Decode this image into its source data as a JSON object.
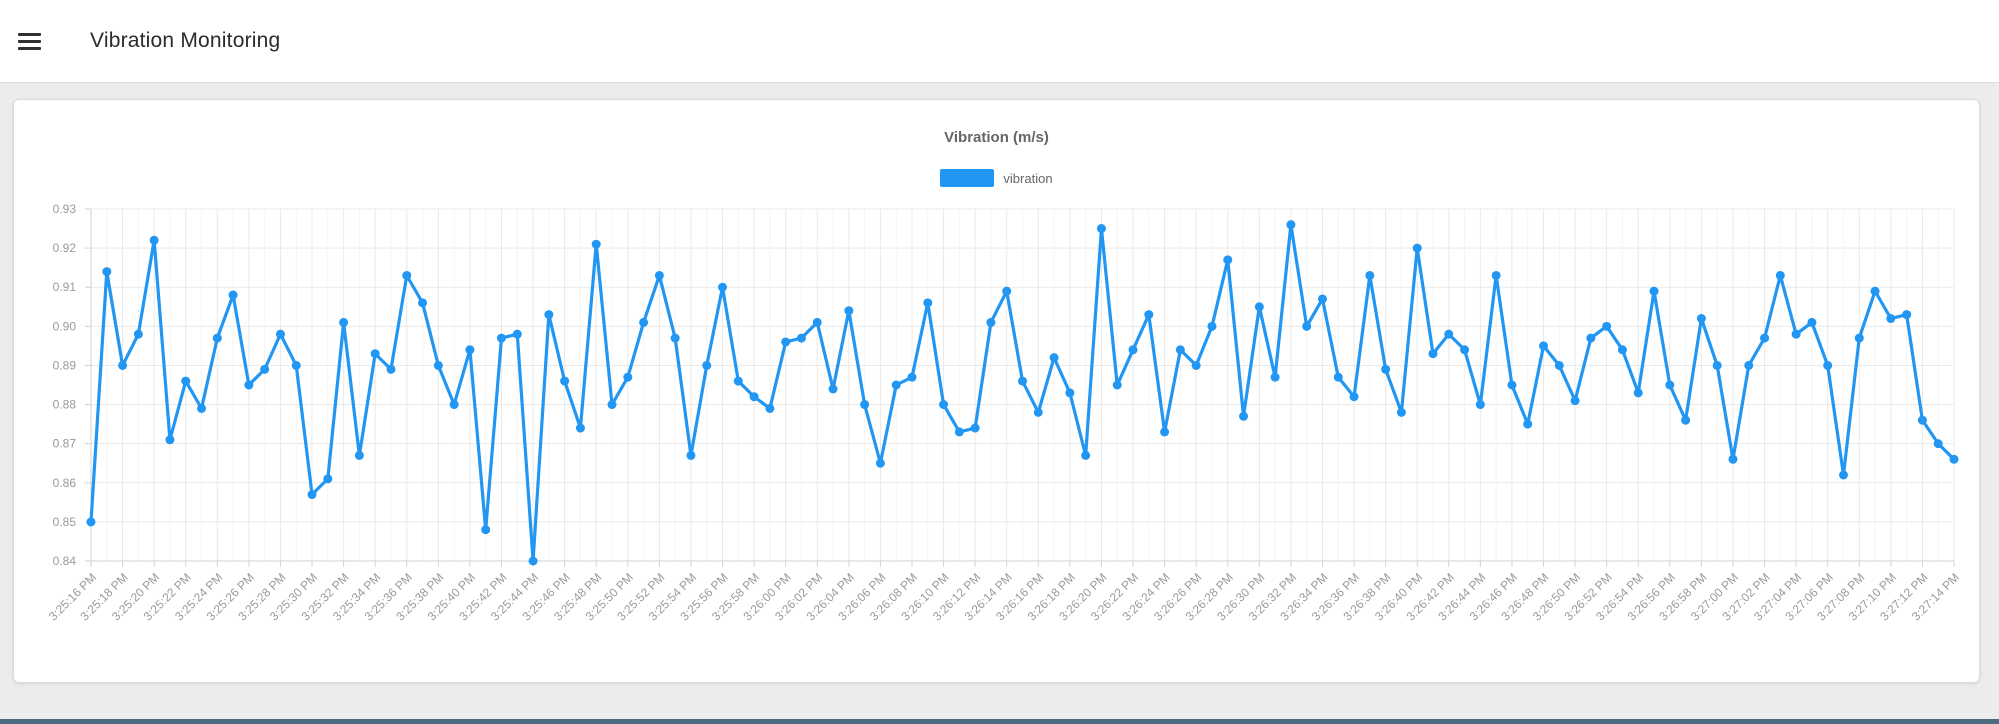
{
  "header": {
    "title": "Vibration Monitoring",
    "menu_icon": "hamburger-icon"
  },
  "chart_data": {
    "type": "line",
    "title": "Vibration (m/s)",
    "legend_position": "top",
    "grid": true,
    "ylim": [
      0.84,
      0.93
    ],
    "y_tick_step": 0.01,
    "y_tick_labels": [
      "0.93",
      "0.92",
      "0.91",
      "0.90",
      "0.89",
      "0.88",
      "0.87",
      "0.86",
      "0.85",
      "0.84"
    ],
    "x_points_per_tick": 2,
    "x_start": "3:25:16 PM",
    "x_end": "3:27:14 PM",
    "x_interval_seconds": 1,
    "x_tick_labels": [
      "3:25:16 PM",
      "3:25:18 PM",
      "3:25:20 PM",
      "3:25:22 PM",
      "3:25:24 PM",
      "3:25:26 PM",
      "3:25:28 PM",
      "3:25:30 PM",
      "3:25:32 PM",
      "3:25:34 PM",
      "3:25:36 PM",
      "3:25:38 PM",
      "3:25:40 PM",
      "3:25:42 PM",
      "3:25:44 PM",
      "3:25:46 PM",
      "3:25:48 PM",
      "3:25:50 PM",
      "3:25:52 PM",
      "3:25:54 PM",
      "3:25:56 PM",
      "3:25:58 PM",
      "3:26:00 PM",
      "3:26:02 PM",
      "3:26:04 PM",
      "3:26:06 PM",
      "3:26:08 PM",
      "3:26:10 PM",
      "3:26:12 PM",
      "3:26:14 PM",
      "3:26:16 PM",
      "3:26:18 PM",
      "3:26:20 PM",
      "3:26:22 PM",
      "3:26:24 PM",
      "3:26:26 PM",
      "3:26:28 PM",
      "3:26:30 PM",
      "3:26:32 PM",
      "3:26:34 PM",
      "3:26:36 PM",
      "3:26:38 PM",
      "3:26:40 PM",
      "3:26:42 PM",
      "3:26:44 PM",
      "3:26:46 PM",
      "3:26:48 PM",
      "3:26:50 PM",
      "3:26:52 PM",
      "3:26:54 PM",
      "3:26:56 PM",
      "3:26:58 PM",
      "3:27:00 PM",
      "3:27:02 PM",
      "3:27:04 PM",
      "3:27:06 PM",
      "3:27:08 PM",
      "3:27:10 PM",
      "3:27:12 PM",
      "3:27:14 PM"
    ],
    "series": [
      {
        "name": "vibration",
        "color": "#2196f3",
        "values": [
          0.85,
          0.914,
          0.89,
          0.898,
          0.922,
          0.871,
          0.886,
          0.879,
          0.897,
          0.908,
          0.885,
          0.889,
          0.898,
          0.89,
          0.857,
          0.861,
          0.901,
          0.867,
          0.893,
          0.889,
          0.913,
          0.906,
          0.89,
          0.88,
          0.894,
          0.848,
          0.897,
          0.898,
          0.84,
          0.903,
          0.886,
          0.874,
          0.921,
          0.88,
          0.887,
          0.901,
          0.913,
          0.897,
          0.867,
          0.89,
          0.91,
          0.886,
          0.882,
          0.879,
          0.896,
          0.897,
          0.901,
          0.884,
          0.904,
          0.88,
          0.865,
          0.885,
          0.887,
          0.906,
          0.88,
          0.873,
          0.874,
          0.901,
          0.909,
          0.886,
          0.878,
          0.892,
          0.883,
          0.867,
          0.925,
          0.885,
          0.894,
          0.903,
          0.873,
          0.894,
          0.89,
          0.9,
          0.917,
          0.877,
          0.905,
          0.887,
          0.926,
          0.9,
          0.907,
          0.887,
          0.882,
          0.913,
          0.889,
          0.878,
          0.92,
          0.893,
          0.898,
          0.894,
          0.88,
          0.913,
          0.885,
          0.875,
          0.895,
          0.89,
          0.881,
          0.897,
          0.9,
          0.894,
          0.883,
          0.909,
          0.885,
          0.876,
          0.902,
          0.89,
          0.866,
          0.89,
          0.897,
          0.913,
          0.898,
          0.901,
          0.89,
          0.862,
          0.897,
          0.909,
          0.902,
          0.903,
          0.876,
          0.87,
          0.866
        ]
      }
    ]
  },
  "footer": {
    "accent_color": "#4b6b80"
  },
  "colors": {
    "page_bg": "#ececec",
    "card_border": "#dcdcdc",
    "grid": "#e9e9e9",
    "grid_minor": "#f4f4f4",
    "axis": "#d2d2d2",
    "tick_text": "#9a9a9a",
    "title_text": "#666666",
    "header_text": "#2b2b2b"
  }
}
